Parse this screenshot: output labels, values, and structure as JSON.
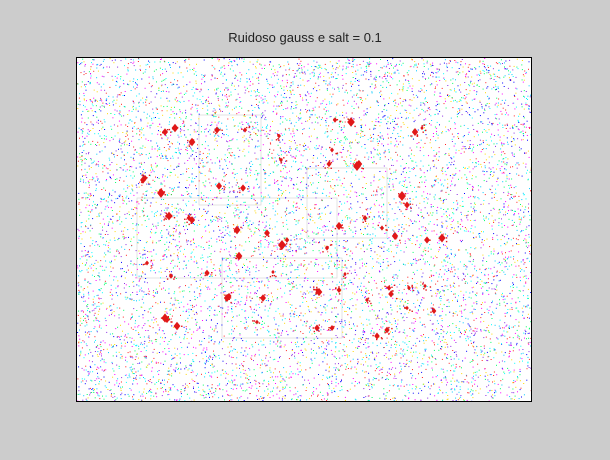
{
  "window": {
    "title": "Ruidoso gauss e salt = 0.1"
  },
  "image": {
    "description_colors": {
      "background": "#ffffff",
      "figure_bg": "#cccccc",
      "marks": "#e01818",
      "noise": [
        "#ff00ff",
        "#00c8ff",
        "#ffd700",
        "#00ff66",
        "#0000ff",
        "#ff2020",
        "#8a2be2",
        "#00ffff"
      ]
    }
  }
}
